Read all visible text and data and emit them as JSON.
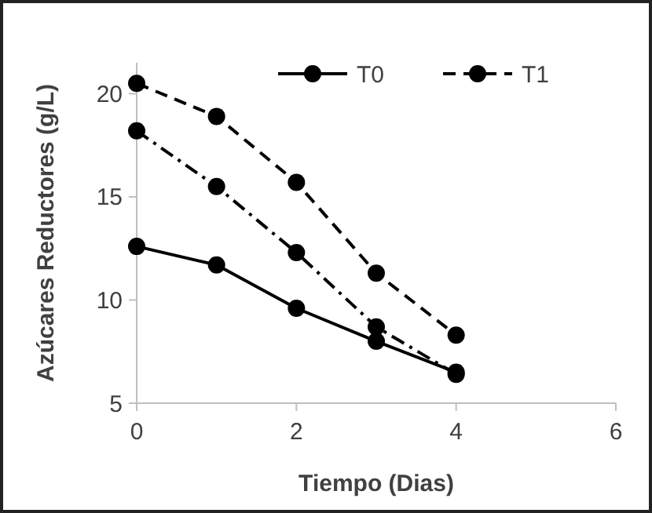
{
  "chart_data": {
    "type": "line",
    "xlabel": "Tiempo (Dias)",
    "ylabel": "Azúcares Reductores (g/L)",
    "x": [
      0,
      1,
      2,
      3,
      4
    ],
    "xlim": [
      0,
      6
    ],
    "xticks": [
      0,
      2,
      4,
      6
    ],
    "ylim": [
      5,
      21.5
    ],
    "yticks": [
      5,
      10,
      15,
      20
    ],
    "marker": "circle",
    "legend": "top right",
    "grid": false,
    "series": [
      {
        "name": "T0",
        "color": "#000000",
        "line_style": "solid",
        "values": [
          12.6,
          11.7,
          9.6,
          8.0,
          6.5
        ]
      },
      {
        "name": "T1",
        "color": "#000000",
        "line_style": "dashed",
        "values": [
          20.5,
          18.9,
          15.7,
          11.3,
          8.3
        ]
      },
      {
        "color": "#000000",
        "line_style": "dashdot",
        "values": [
          18.2,
          15.5,
          12.3,
          8.7,
          6.4
        ]
      }
    ]
  }
}
